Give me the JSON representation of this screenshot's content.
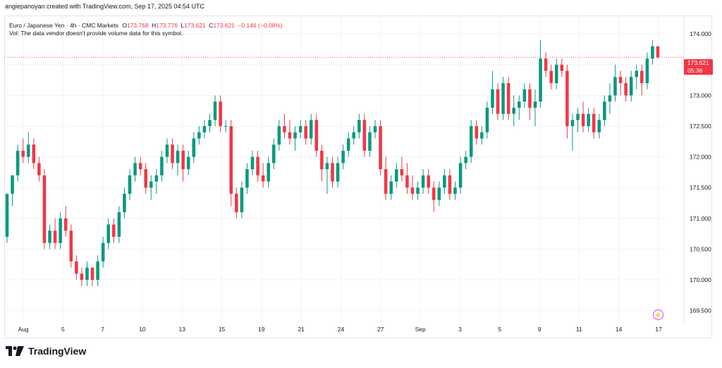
{
  "header": {
    "credit": "angiepanoyan created with TradingView.com, Sep 17, 2025 04:54 UTC"
  },
  "legend": {
    "symbol": "Euro / Japanese Yen · 4h · CMC Markets",
    "o_label": "O",
    "o_value": "173.768",
    "h_label": "H",
    "h_value": "173.776",
    "l_label": "L",
    "l_value": "173.621",
    "c_label": "C",
    "c_value": "173.621",
    "change": "−0.146 (−0.08%)",
    "volume_note": "Vol: The data vendor doesn't provide volume data for this symbol."
  },
  "last_price": {
    "value": "173.621",
    "countdown": "05:36"
  },
  "brand": {
    "name": "TradingView"
  },
  "colors": {
    "up": "#089981",
    "down": "#f23645",
    "grid": "#f0f3fa",
    "axis_text": "#131722"
  },
  "icons": {
    "flash": "lightning-icon",
    "logo": "tradingview-logo-icon"
  },
  "chart_data": {
    "type": "candlestick",
    "title": "Euro / Japanese Yen · 4h · CMC Markets",
    "xlabel": "",
    "ylabel": "",
    "ylim": [
      169.3,
      174.3
    ],
    "y_ticks": [
      "174.000",
      "173.500",
      "173.000",
      "172.500",
      "172.000",
      "171.500",
      "171.000",
      "170.500",
      "170.000",
      "169.500"
    ],
    "x_ticks": [
      "Aug",
      "5",
      "7",
      "10",
      "13",
      "15",
      "19",
      "21",
      "24",
      "27",
      "Sep",
      "3",
      "5",
      "9",
      "11",
      "14",
      "17"
    ],
    "grid": true,
    "current_price": 173.621,
    "candles": [
      [
        170.7,
        171.4,
        170.6,
        171.4
      ],
      [
        171.4,
        171.7,
        171.2,
        171.7
      ],
      [
        171.7,
        172.2,
        171.6,
        172.1
      ],
      [
        172.1,
        172.3,
        171.9,
        172.0
      ],
      [
        172.0,
        172.4,
        171.9,
        172.2
      ],
      [
        172.2,
        172.3,
        171.8,
        171.9
      ],
      [
        171.9,
        172.0,
        171.6,
        171.7
      ],
      [
        171.7,
        171.8,
        170.5,
        170.6
      ],
      [
        170.6,
        170.9,
        170.5,
        170.8
      ],
      [
        170.8,
        171.0,
        170.5,
        170.6
      ],
      [
        170.6,
        171.1,
        170.5,
        171.0
      ],
      [
        171.0,
        171.2,
        170.7,
        170.8
      ],
      [
        170.8,
        170.9,
        170.2,
        170.3
      ],
      [
        170.3,
        170.4,
        170.0,
        170.1
      ],
      [
        170.1,
        170.2,
        169.9,
        170.0
      ],
      [
        170.0,
        170.3,
        169.9,
        170.2
      ],
      [
        170.2,
        170.2,
        169.9,
        170.0
      ],
      [
        170.0,
        170.4,
        169.9,
        170.3
      ],
      [
        170.3,
        170.7,
        170.2,
        170.6
      ],
      [
        170.6,
        171.0,
        170.5,
        170.9
      ],
      [
        170.9,
        171.0,
        170.6,
        170.7
      ],
      [
        170.7,
        171.2,
        170.6,
        171.1
      ],
      [
        171.1,
        171.5,
        171.0,
        171.4
      ],
      [
        171.4,
        171.8,
        171.3,
        171.7
      ],
      [
        171.7,
        172.0,
        171.6,
        171.9
      ],
      [
        171.9,
        172.0,
        171.7,
        171.8
      ],
      [
        171.8,
        171.9,
        171.4,
        171.5
      ],
      [
        171.5,
        171.7,
        171.3,
        171.6
      ],
      [
        171.6,
        171.8,
        171.4,
        171.7
      ],
      [
        171.7,
        172.1,
        171.6,
        172.0
      ],
      [
        172.0,
        172.3,
        171.9,
        172.2
      ],
      [
        172.2,
        172.3,
        171.8,
        171.9
      ],
      [
        171.9,
        172.2,
        171.7,
        172.1
      ],
      [
        172.1,
        172.2,
        171.6,
        171.8
      ],
      [
        171.8,
        172.1,
        171.7,
        172.0
      ],
      [
        172.0,
        172.4,
        171.9,
        172.3
      ],
      [
        172.3,
        172.5,
        172.2,
        172.4
      ],
      [
        172.4,
        172.6,
        172.3,
        172.5
      ],
      [
        172.5,
        172.7,
        172.4,
        172.6
      ],
      [
        172.6,
        173.0,
        172.5,
        172.9
      ],
      [
        172.9,
        173.0,
        172.4,
        172.5
      ],
      [
        172.5,
        172.6,
        172.4,
        172.5
      ],
      [
        172.5,
        172.6,
        171.2,
        171.4
      ],
      [
        171.4,
        171.5,
        171.0,
        171.1
      ],
      [
        171.1,
        171.6,
        171.0,
        171.5
      ],
      [
        171.5,
        171.9,
        171.4,
        171.8
      ],
      [
        171.8,
        172.1,
        171.7,
        172.0
      ],
      [
        172.0,
        172.1,
        171.6,
        171.7
      ],
      [
        171.7,
        171.9,
        171.5,
        171.6
      ],
      [
        171.6,
        172.0,
        171.5,
        171.9
      ],
      [
        171.9,
        172.3,
        171.8,
        172.2
      ],
      [
        172.2,
        172.6,
        172.1,
        172.5
      ],
      [
        172.5,
        172.7,
        172.3,
        172.4
      ],
      [
        172.4,
        172.6,
        172.2,
        172.3
      ],
      [
        172.3,
        172.5,
        172.1,
        172.4
      ],
      [
        172.4,
        172.6,
        172.3,
        172.5
      ],
      [
        172.5,
        172.6,
        172.2,
        172.3
      ],
      [
        172.3,
        172.7,
        172.2,
        172.6
      ],
      [
        172.6,
        172.7,
        172.0,
        172.1
      ],
      [
        172.1,
        172.2,
        171.6,
        171.8
      ],
      [
        171.8,
        172.0,
        171.4,
        171.9
      ],
      [
        171.9,
        172.0,
        171.5,
        171.6
      ],
      [
        171.6,
        172.0,
        171.5,
        171.9
      ],
      [
        171.9,
        172.2,
        171.8,
        172.1
      ],
      [
        172.1,
        172.4,
        172.0,
        172.3
      ],
      [
        172.3,
        172.5,
        172.2,
        172.4
      ],
      [
        172.4,
        172.7,
        172.3,
        172.6
      ],
      [
        172.6,
        172.7,
        172.0,
        172.1
      ],
      [
        172.1,
        172.5,
        172.0,
        172.4
      ],
      [
        172.4,
        172.6,
        172.3,
        172.5
      ],
      [
        172.5,
        172.6,
        171.7,
        171.8
      ],
      [
        171.8,
        172.0,
        171.3,
        171.4
      ],
      [
        171.4,
        171.7,
        171.3,
        171.6
      ],
      [
        171.6,
        171.9,
        171.5,
        171.8
      ],
      [
        171.8,
        172.0,
        171.6,
        171.7
      ],
      [
        171.7,
        171.9,
        171.4,
        171.5
      ],
      [
        171.5,
        171.7,
        171.3,
        171.4
      ],
      [
        171.4,
        171.6,
        171.3,
        171.5
      ],
      [
        171.5,
        171.8,
        171.4,
        171.7
      ],
      [
        171.7,
        171.8,
        171.4,
        171.5
      ],
      [
        171.5,
        171.6,
        171.1,
        171.3
      ],
      [
        171.3,
        171.6,
        171.2,
        171.5
      ],
      [
        171.5,
        171.8,
        171.4,
        171.7
      ],
      [
        171.7,
        171.8,
        171.3,
        171.4
      ],
      [
        171.4,
        171.6,
        171.3,
        171.5
      ],
      [
        171.5,
        172.0,
        171.4,
        171.9
      ],
      [
        171.9,
        172.1,
        171.8,
        172.0
      ],
      [
        172.0,
        172.6,
        171.9,
        172.5
      ],
      [
        172.5,
        172.6,
        172.2,
        172.3
      ],
      [
        172.3,
        172.5,
        172.2,
        172.4
      ],
      [
        172.4,
        172.9,
        172.3,
        172.8
      ],
      [
        172.8,
        173.4,
        172.7,
        173.1
      ],
      [
        173.1,
        173.2,
        172.6,
        172.7
      ],
      [
        172.7,
        173.3,
        172.6,
        173.2
      ],
      [
        173.2,
        173.3,
        172.6,
        172.7
      ],
      [
        172.7,
        173.0,
        172.5,
        172.8
      ],
      [
        172.8,
        173.0,
        172.6,
        172.9
      ],
      [
        172.9,
        173.2,
        172.8,
        173.1
      ],
      [
        173.1,
        173.2,
        172.6,
        172.8
      ],
      [
        172.8,
        173.1,
        172.5,
        172.9
      ],
      [
        172.9,
        173.9,
        172.8,
        173.6
      ],
      [
        173.6,
        173.7,
        173.3,
        173.4
      ],
      [
        173.4,
        173.5,
        173.1,
        173.2
      ],
      [
        173.2,
        173.6,
        173.1,
        173.5
      ],
      [
        173.5,
        173.6,
        173.3,
        173.4
      ],
      [
        173.4,
        173.5,
        172.3,
        172.5
      ],
      [
        172.5,
        172.7,
        172.1,
        172.6
      ],
      [
        172.6,
        172.8,
        172.4,
        172.7
      ],
      [
        172.7,
        172.9,
        172.4,
        172.5
      ],
      [
        172.5,
        172.8,
        172.4,
        172.7
      ],
      [
        172.7,
        172.8,
        172.3,
        172.4
      ],
      [
        172.4,
        172.7,
        172.3,
        172.6
      ],
      [
        172.6,
        173.0,
        172.5,
        172.9
      ],
      [
        172.9,
        173.2,
        172.7,
        173.0
      ],
      [
        173.0,
        173.5,
        172.9,
        173.3
      ],
      [
        173.3,
        173.4,
        173.0,
        173.2
      ],
      [
        173.2,
        173.3,
        172.9,
        173.0
      ],
      [
        173.0,
        173.4,
        172.9,
        173.3
      ],
      [
        173.3,
        173.5,
        173.1,
        173.4
      ],
      [
        173.4,
        173.5,
        173.0,
        173.2
      ],
      [
        173.2,
        173.7,
        173.1,
        173.6
      ],
      [
        173.6,
        173.9,
        173.5,
        173.8
      ],
      [
        173.8,
        173.8,
        173.6,
        173.621
      ]
    ]
  }
}
